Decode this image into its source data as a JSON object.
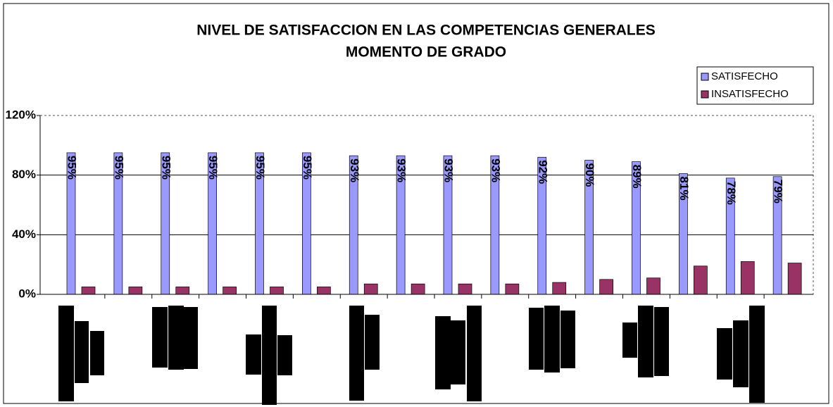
{
  "chart_data": {
    "type": "bar",
    "title": [
      "NIVEL DE SATISFACCION EN LAS COMPETENCIAS GENERALES",
      "MOMENTO DE GRADO"
    ],
    "categories": [
      null,
      null,
      null,
      null,
      null,
      null,
      null,
      null,
      null,
      null,
      null,
      null,
      null,
      null,
      null,
      null
    ],
    "series": [
      {
        "name": "SATISFECHO",
        "color": "#9999ff",
        "values": [
          95,
          95,
          95,
          95,
          95,
          95,
          93,
          93,
          93,
          93,
          92,
          90,
          89,
          81,
          78,
          79
        ],
        "value_labels": [
          "95%",
          "95%",
          "95%",
          "95%",
          "95%",
          "95%",
          "93%",
          "93%",
          "93%",
          "93%",
          "92%",
          "90%",
          "89%",
          "81%",
          "78%",
          "79%"
        ]
      },
      {
        "name": "INSATISFECHO",
        "color": "#993366",
        "values": [
          5,
          5,
          5,
          5,
          5,
          5,
          7,
          7,
          7,
          7,
          8,
          10,
          11,
          19,
          22,
          21
        ]
      }
    ],
    "ylim": [
      0,
      120
    ],
    "yticks": [
      {
        "value": 0,
        "label": "0%"
      },
      {
        "value": 40,
        "label": "40%"
      },
      {
        "value": 80,
        "label": "80%"
      },
      {
        "value": 120,
        "label": "120%"
      }
    ],
    "grid": true,
    "legend": "top-right"
  }
}
